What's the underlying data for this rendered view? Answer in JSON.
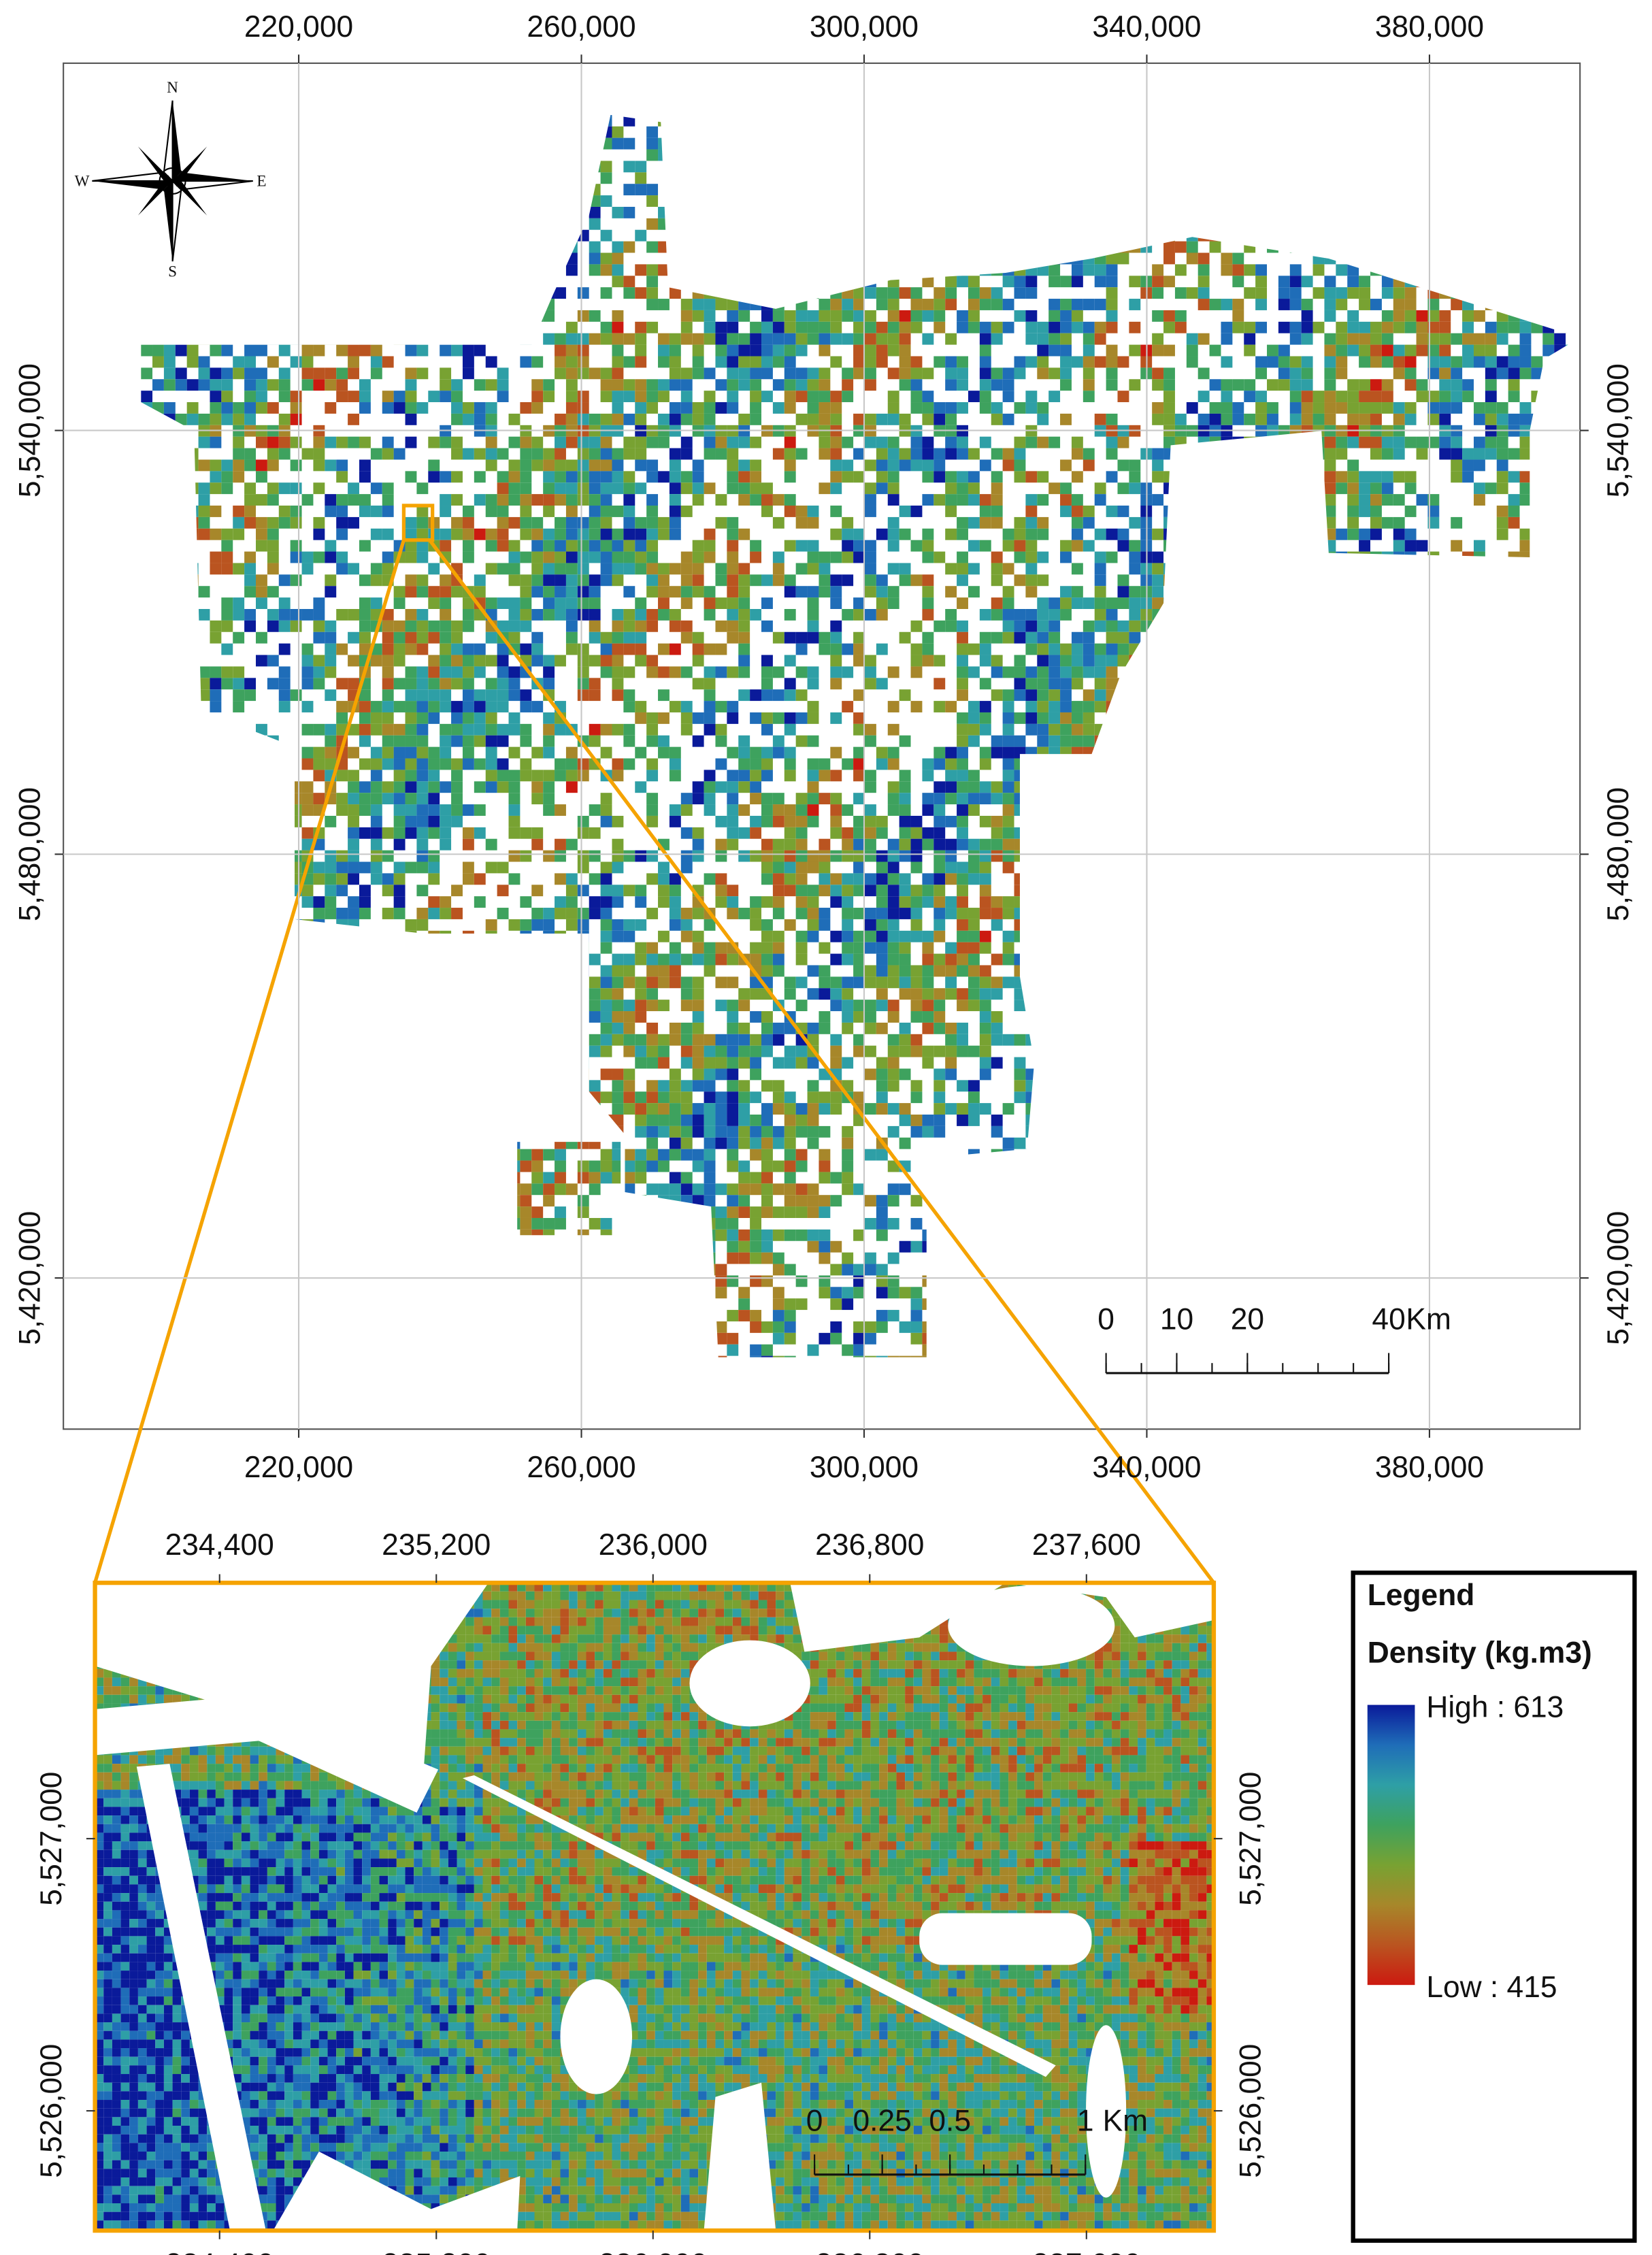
{
  "main_map": {
    "xlim": [
      186700,
      401300
    ],
    "ylim": [
      5398600,
      5592000
    ],
    "xticks": [
      {
        "value": 220000,
        "label": "220,000"
      },
      {
        "value": 260000,
        "label": "260,000"
      },
      {
        "value": 300000,
        "label": "300,000"
      },
      {
        "value": 340000,
        "label": "340,000"
      },
      {
        "value": 380000,
        "label": "380,000"
      }
    ],
    "yticks": [
      {
        "value": 5420000,
        "label": "5,420,000"
      },
      {
        "value": 5480000,
        "label": "5,480,000"
      },
      {
        "value": 5540000,
        "label": "5,540,000"
      }
    ],
    "grid": true,
    "scale_bar": {
      "ticks": [
        0,
        10,
        20,
        40
      ],
      "unit": "Km"
    }
  },
  "compass": {
    "n": "N",
    "s": "S",
    "e": "E",
    "w": "W"
  },
  "inset_map": {
    "xlim": [
      233940,
      238070
    ],
    "ylim": [
      5525560,
      5527940
    ],
    "xticks": [
      {
        "value": 234400,
        "label": "234,400"
      },
      {
        "value": 235200,
        "label": "235,200"
      },
      {
        "value": 236000,
        "label": "236,000"
      },
      {
        "value": 236800,
        "label": "236,800"
      },
      {
        "value": 237600,
        "label": "237,600"
      }
    ],
    "yticks": [
      {
        "value": 5526000,
        "label": "5,526,000"
      },
      {
        "value": 5527000,
        "label": "5,527,000"
      }
    ],
    "grid": false,
    "scale_bar": {
      "ticks": [
        0,
        0.25,
        0.5,
        1
      ],
      "unit": "Km"
    }
  },
  "legend": {
    "title": "Legend",
    "field": "Density (kg.m3)",
    "high_label": "High : 613",
    "low_label": "Low : 415",
    "colors": [
      "#0a1a9a",
      "#1f6db8",
      "#2e9fa6",
      "#3ea25e",
      "#78a232",
      "#a7872a",
      "#ba5420",
      "#cc1a10"
    ]
  }
}
